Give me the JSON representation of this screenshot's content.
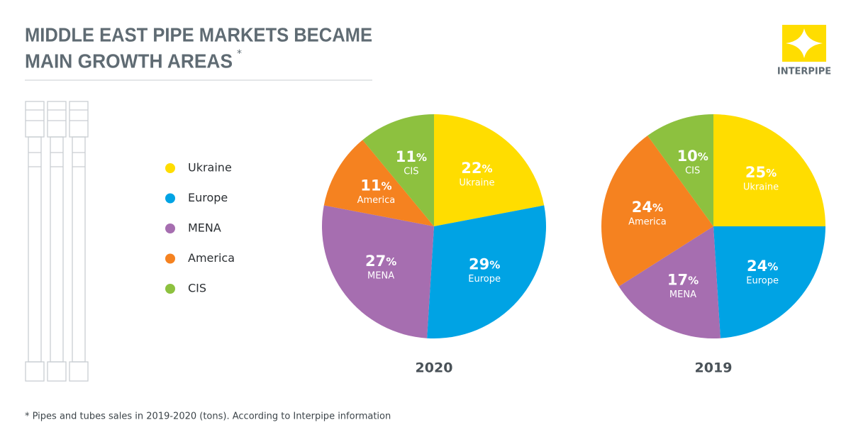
{
  "header": {
    "title": [
      "MIDDLE EAST PIPE MARKETS BECAME",
      "MAIN GROWTH AREAS"
    ],
    "asterisk": "*"
  },
  "logo": "INTERPIPE",
  "footnote": "* Pipes and tubes sales in 2019-2020 (tons). According to Interpipe information",
  "chart_data": [
    {
      "type": "pie",
      "title": "2020",
      "unit": "%",
      "categories": [
        "Ukraine",
        "Europe",
        "MENA",
        "America",
        "CIS"
      ],
      "values": [
        22,
        29,
        27,
        11,
        11
      ],
      "colors": [
        "#ffdd00",
        "#00a3e4",
        "#a66eb0",
        "#f58220",
        "#8dc13f"
      ]
    },
    {
      "type": "pie",
      "title": "2019",
      "unit": "%",
      "categories": [
        "Ukraine",
        "Europe",
        "MENA",
        "America",
        "CIS"
      ],
      "values": [
        25,
        24,
        17,
        24,
        10
      ],
      "colors": [
        "#ffdd00",
        "#00a3e4",
        "#a66eb0",
        "#f58220",
        "#8dc13f"
      ]
    }
  ]
}
